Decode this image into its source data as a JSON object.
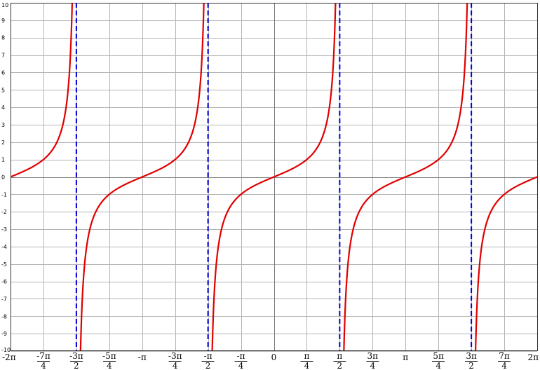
{
  "chart_data": {
    "type": "line",
    "title": "",
    "xlabel": "",
    "ylabel": "",
    "xlim": [
      -6.283185,
      6.283185
    ],
    "ylim": [
      -10,
      10
    ],
    "grid": true,
    "colors": {
      "curve": "#e00000",
      "asymptote": "#0000e0",
      "grid": "#b4b4b4",
      "axis": "#7a7a7a"
    },
    "series": [
      {
        "function": "tan(x)",
        "x": [
          -6.2832,
          -5.4978,
          -4.7124,
          -3.927,
          -3.1416,
          -2.3562,
          -1.5708,
          -0.7854,
          0,
          0.7854,
          1.5708,
          2.3562,
          3.1416,
          3.927,
          4.7124,
          5.4978,
          6.2832
        ],
        "y": [
          0,
          1,
          null,
          -1,
          0,
          1,
          null,
          -1,
          0,
          1,
          null,
          -1,
          0,
          1,
          null,
          -1,
          0
        ]
      }
    ],
    "asymptotes": [
      -4.712389,
      -1.570796,
      1.570796,
      4.712389
    ],
    "yticks": [
      {
        "v": 10,
        "label": "10"
      },
      {
        "v": 9,
        "label": "9"
      },
      {
        "v": 8,
        "label": "8"
      },
      {
        "v": 7,
        "label": "7"
      },
      {
        "v": 6,
        "label": "6"
      },
      {
        "v": 5,
        "label": "5"
      },
      {
        "v": 4,
        "label": "4"
      },
      {
        "v": 3,
        "label": "3"
      },
      {
        "v": 2,
        "label": "2"
      },
      {
        "v": 1,
        "label": "1"
      },
      {
        "v": 0,
        "label": "0"
      },
      {
        "v": -1,
        "label": "-1"
      },
      {
        "v": -2,
        "label": "-2"
      },
      {
        "v": -3,
        "label": "-3"
      },
      {
        "v": -4,
        "label": "-4"
      },
      {
        "v": -5,
        "label": "-5"
      },
      {
        "v": -6,
        "label": "-6"
      },
      {
        "v": -7,
        "label": "-7"
      },
      {
        "v": -8,
        "label": "-8"
      },
      {
        "v": -9,
        "label": "-9"
      },
      {
        "v": -10,
        "label": "-10"
      }
    ],
    "xticks": [
      {
        "v": -6.283185,
        "label": "-2π"
      },
      {
        "v": -5.497787,
        "num": "-7π",
        "den": "4"
      },
      {
        "v": -4.712389,
        "num": "-3π",
        "den": "2"
      },
      {
        "v": -3.926991,
        "num": "-5π",
        "den": "4"
      },
      {
        "v": -3.141593,
        "label": "-π"
      },
      {
        "v": -2.356194,
        "num": "-3π",
        "den": "4"
      },
      {
        "v": -1.570796,
        "num": "-π",
        "den": "2"
      },
      {
        "v": -0.785398,
        "num": "-π",
        "den": "4"
      },
      {
        "v": 0,
        "label": "0"
      },
      {
        "v": 0.785398,
        "num": "π",
        "den": "4"
      },
      {
        "v": 1.570796,
        "num": "π",
        "den": "2"
      },
      {
        "v": 2.356194,
        "num": "3π",
        "den": "4"
      },
      {
        "v": 3.141593,
        "label": "π"
      },
      {
        "v": 3.926991,
        "num": "5π",
        "den": "4"
      },
      {
        "v": 4.712389,
        "num": "3π",
        "den": "2"
      },
      {
        "v": 5.497787,
        "num": "7π",
        "den": "4"
      },
      {
        "v": 6.283185,
        "label": "2π"
      }
    ]
  }
}
